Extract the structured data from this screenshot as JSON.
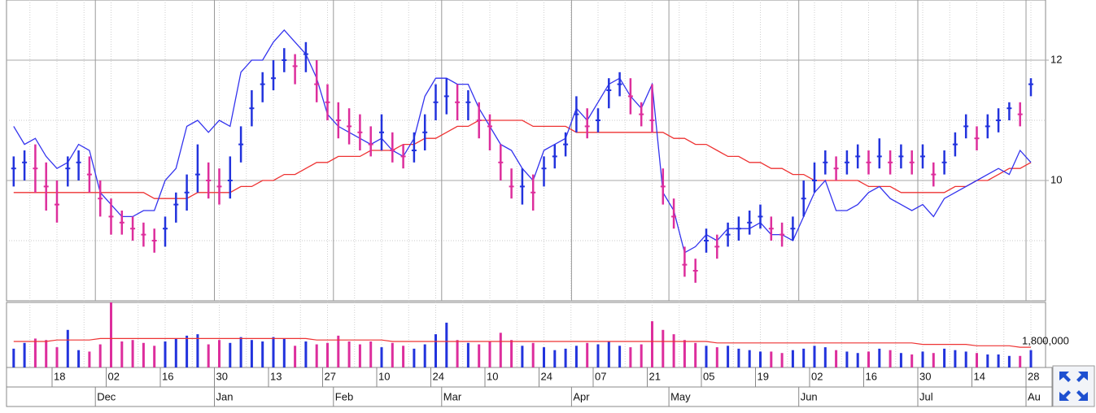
{
  "chart_data": {
    "type": "stock",
    "categories": [
      null,
      null,
      null,
      null,
      "18",
      null,
      null,
      null,
      null,
      "02",
      null,
      null,
      null,
      null,
      "16",
      null,
      null,
      null,
      null,
      "30",
      null,
      null,
      null,
      null,
      "13",
      null,
      null,
      null,
      null,
      "27",
      null,
      null,
      null,
      null,
      "10",
      null,
      null,
      null,
      null,
      "24",
      null,
      null,
      null,
      null,
      "10",
      null,
      null,
      null,
      null,
      "24",
      null,
      null,
      null,
      null,
      "07",
      null,
      null,
      null,
      null,
      "21",
      null,
      null,
      null,
      null,
      "05",
      null,
      null,
      null,
      null,
      "19",
      null,
      null,
      null,
      null,
      "02",
      null,
      null,
      null,
      null,
      "16",
      null,
      null,
      null,
      null,
      "30",
      null,
      null,
      null,
      null,
      "14",
      null,
      null,
      null,
      null,
      "28"
    ],
    "months": [
      {
        "label": "Dec",
        "index": 8
      },
      {
        "label": "Jan",
        "index": 19
      },
      {
        "label": "Feb",
        "index": 30
      },
      {
        "label": "Mar",
        "index": 40
      },
      {
        "label": "Apr",
        "index": 52
      },
      {
        "label": "May",
        "index": 61
      },
      {
        "label": "Jun",
        "index": 73
      },
      {
        "label": "Jul",
        "index": 84
      },
      {
        "label": "Au",
        "index": 94
      }
    ],
    "close": [
      10.2,
      10.3,
      10.2,
      9.9,
      9.6,
      10.2,
      10.3,
      10.1,
      9.7,
      9.4,
      9.3,
      9.2,
      9.1,
      9.0,
      9.2,
      9.6,
      9.8,
      10.1,
      10.0,
      9.9,
      10.0,
      10.6,
      11.2,
      11.6,
      11.7,
      12.0,
      11.9,
      12.1,
      11.6,
      11.3,
      11.0,
      10.9,
      10.8,
      10.6,
      10.8,
      10.5,
      10.4,
      10.5,
      10.8,
      11.3,
      11.4,
      11.3,
      11.3,
      11.0,
      10.9,
      10.3,
      9.9,
      9.9,
      9.8,
      10.2,
      10.4,
      10.6,
      11.1,
      10.9,
      11.0,
      11.5,
      11.6,
      11.4,
      11.1,
      11.0,
      9.9,
      9.4,
      8.6,
      8.5,
      9.0,
      8.9,
      9.1,
      9.2,
      9.3,
      9.4,
      9.2,
      9.1,
      9.2,
      9.7,
      10.0,
      10.3,
      10.2,
      10.3,
      10.4,
      10.3,
      10.4,
      10.3,
      10.4,
      10.3,
      10.4,
      10.1,
      10.3,
      10.6,
      10.9,
      10.7,
      10.9,
      11.0,
      11.2,
      11.1,
      11.6
    ],
    "high": [
      10.4,
      10.5,
      10.6,
      10.3,
      10.0,
      10.4,
      10.5,
      10.4,
      10.0,
      9.7,
      9.5,
      9.4,
      9.3,
      9.2,
      9.4,
      9.8,
      10.1,
      10.6,
      10.3,
      10.2,
      10.4,
      10.9,
      11.5,
      11.8,
      12.0,
      12.2,
      12.1,
      12.3,
      12.0,
      11.6,
      11.3,
      11.2,
      11.1,
      10.9,
      11.1,
      10.8,
      10.6,
      10.8,
      11.1,
      11.6,
      11.7,
      11.6,
      11.5,
      11.3,
      11.1,
      10.6,
      10.2,
      10.2,
      10.1,
      10.4,
      10.6,
      10.8,
      11.4,
      11.2,
      11.2,
      11.7,
      11.8,
      11.7,
      11.3,
      11.6,
      10.2,
      9.7,
      8.9,
      8.7,
      9.2,
      9.1,
      9.3,
      9.4,
      9.5,
      9.6,
      9.4,
      9.3,
      9.4,
      10.0,
      10.3,
      10.5,
      10.4,
      10.5,
      10.6,
      10.5,
      10.7,
      10.5,
      10.6,
      10.5,
      10.6,
      10.3,
      10.5,
      10.8,
      11.1,
      10.9,
      11.1,
      11.2,
      11.3,
      11.3,
      11.7
    ],
    "low": [
      9.9,
      10.0,
      9.8,
      9.5,
      9.3,
      9.9,
      10.0,
      9.8,
      9.4,
      9.1,
      9.1,
      9.0,
      8.9,
      8.8,
      8.9,
      9.3,
      9.5,
      9.8,
      9.7,
      9.6,
      9.7,
      10.3,
      10.9,
      11.3,
      11.5,
      11.8,
      11.6,
      11.8,
      11.3,
      11.0,
      10.7,
      10.6,
      10.5,
      10.4,
      10.5,
      10.3,
      10.2,
      10.3,
      10.5,
      11.0,
      11.1,
      11.0,
      11.0,
      10.7,
      10.5,
      10.0,
      9.7,
      9.6,
      9.5,
      9.9,
      10.2,
      10.4,
      10.8,
      10.7,
      10.8,
      11.2,
      11.4,
      11.1,
      10.9,
      10.8,
      9.6,
      9.2,
      8.4,
      8.3,
      8.8,
      8.7,
      8.9,
      9.0,
      9.1,
      9.2,
      9.0,
      8.9,
      9.0,
      9.4,
      9.8,
      10.1,
      10.0,
      10.1,
      10.2,
      10.1,
      10.2,
      10.1,
      10.2,
      10.1,
      10.2,
      9.9,
      10.1,
      10.4,
      10.7,
      10.5,
      10.7,
      10.8,
      11.0,
      10.9,
      11.4
    ],
    "up_color": "#2233dd",
    "down_color": "#dd2e9c",
    "compare": {
      "color": "#3333ee",
      "values": [
        10.9,
        10.6,
        10.7,
        10.4,
        10.2,
        10.3,
        10.6,
        10.5,
        9.8,
        9.6,
        9.4,
        9.4,
        9.5,
        9.5,
        10.0,
        10.2,
        10.9,
        11.0,
        10.8,
        11.0,
        10.9,
        11.8,
        12.0,
        12.0,
        12.3,
        12.5,
        12.3,
        12.1,
        11.7,
        11.1,
        10.9,
        10.8,
        10.7,
        10.6,
        10.7,
        10.5,
        10.4,
        10.7,
        11.4,
        11.7,
        11.7,
        11.6,
        11.6,
        11.2,
        10.9,
        10.6,
        10.5,
        10.2,
        10.0,
        10.5,
        10.6,
        10.7,
        11.2,
        11.0,
        11.3,
        11.6,
        11.7,
        11.4,
        11.2,
        11.6,
        9.8,
        9.5,
        8.8,
        8.9,
        9.1,
        9.0,
        9.2,
        9.2,
        9.2,
        9.3,
        9.1,
        9.1,
        9.0,
        9.4,
        9.8,
        10.0,
        9.5,
        9.5,
        9.6,
        9.8,
        9.9,
        9.7,
        9.6,
        9.5,
        9.6,
        9.4,
        9.7,
        9.8,
        9.9,
        10.0,
        10.1,
        10.2,
        10.1,
        10.5,
        10.3
      ]
    },
    "moving_average": {
      "color": "#ee3333",
      "values": [
        9.8,
        9.8,
        9.8,
        9.8,
        9.8,
        9.8,
        9.8,
        9.8,
        9.8,
        9.8,
        9.8,
        9.8,
        9.8,
        9.7,
        9.7,
        9.7,
        9.7,
        9.8,
        9.8,
        9.8,
        9.8,
        9.9,
        9.9,
        10.0,
        10.0,
        10.1,
        10.1,
        10.2,
        10.3,
        10.3,
        10.4,
        10.4,
        10.4,
        10.5,
        10.5,
        10.5,
        10.6,
        10.6,
        10.7,
        10.7,
        10.8,
        10.9,
        10.9,
        11.0,
        11.0,
        11.0,
        11.0,
        11.0,
        10.9,
        10.9,
        10.9,
        10.9,
        10.8,
        10.8,
        10.8,
        10.8,
        10.8,
        10.8,
        10.8,
        10.8,
        10.8,
        10.7,
        10.7,
        10.6,
        10.6,
        10.5,
        10.4,
        10.4,
        10.3,
        10.3,
        10.2,
        10.2,
        10.1,
        10.1,
        10.0,
        10.0,
        10.0,
        10.0,
        10.0,
        9.9,
        9.9,
        9.9,
        9.8,
        9.8,
        9.8,
        9.8,
        9.8,
        9.9,
        9.9,
        10.0,
        10.0,
        10.1,
        10.2,
        10.2,
        10.3
      ]
    },
    "ylim": [
      8,
      13
    ],
    "yticks": [
      10,
      12
    ],
    "minor_yticks": [
      9,
      11
    ],
    "volume": [
      1300000,
      1700000,
      2000000,
      1900000,
      1400000,
      2600000,
      1200000,
      1100000,
      1600000,
      4500000,
      1800000,
      1900000,
      1700000,
      1500000,
      1800000,
      2000000,
      2200000,
      2300000,
      1600000,
      1900000,
      1700000,
      2100000,
      1900000,
      1800000,
      2100000,
      2000000,
      1500000,
      1800000,
      1600000,
      1700000,
      2200000,
      1800000,
      1600000,
      1800000,
      1400000,
      1700000,
      1500000,
      1300000,
      1600000,
      2300000,
      3100000,
      1900000,
      1700000,
      1600000,
      1800000,
      2400000,
      1900000,
      1500000,
      1700000,
      1400000,
      1200000,
      1300000,
      1500000,
      1700000,
      1600000,
      1800000,
      1500000,
      1400000,
      1600000,
      3200000,
      2600000,
      2300000,
      1900000,
      1700000,
      1500000,
      1400000,
      1500000,
      1300000,
      1200000,
      1100000,
      1100000,
      1000000,
      1200000,
      1300000,
      1500000,
      1400000,
      1200000,
      1100000,
      1000000,
      1100000,
      1300000,
      1200000,
      1000000,
      900000,
      1100000,
      1000000,
      1300000,
      1200000,
      1100000,
      1000000,
      900000,
      900000,
      800000,
      800000,
      1200000
    ],
    "volume_ma": {
      "color": "#ee3333",
      "values": [
        1800000,
        1800000,
        1800000,
        1800000,
        1900000,
        1900000,
        1900000,
        1900000,
        2000000,
        2000000,
        2000000,
        2000000,
        2000000,
        2000000,
        2000000,
        2000000,
        2000000,
        2000000,
        2000000,
        2000000,
        2000000,
        2000000,
        2000000,
        2000000,
        2000000,
        2000000,
        2000000,
        2000000,
        1900000,
        1900000,
        1900000,
        1900000,
        1900000,
        1900000,
        1900000,
        1800000,
        1800000,
        1800000,
        1800000,
        1800000,
        1800000,
        1800000,
        1800000,
        1800000,
        1800000,
        1800000,
        1800000,
        1800000,
        1800000,
        1800000,
        1800000,
        1800000,
        1800000,
        1800000,
        1800000,
        1800000,
        1800000,
        1800000,
        1800000,
        1800000,
        1800000,
        1800000,
        1800000,
        1800000,
        1800000,
        1700000,
        1700000,
        1700000,
        1700000,
        1700000,
        1700000,
        1700000,
        1700000,
        1700000,
        1700000,
        1700000,
        1700000,
        1700000,
        1700000,
        1700000,
        1700000,
        1700000,
        1700000,
        1700000,
        1600000,
        1600000,
        1600000,
        1600000,
        1600000,
        1500000,
        1500000,
        1500000,
        1500000,
        1400000,
        1400000
      ]
    },
    "volume_ylim": [
      0,
      4500000
    ],
    "volume_yticks": [
      {
        "value": 1800000,
        "label": "1,800,000"
      }
    ]
  }
}
